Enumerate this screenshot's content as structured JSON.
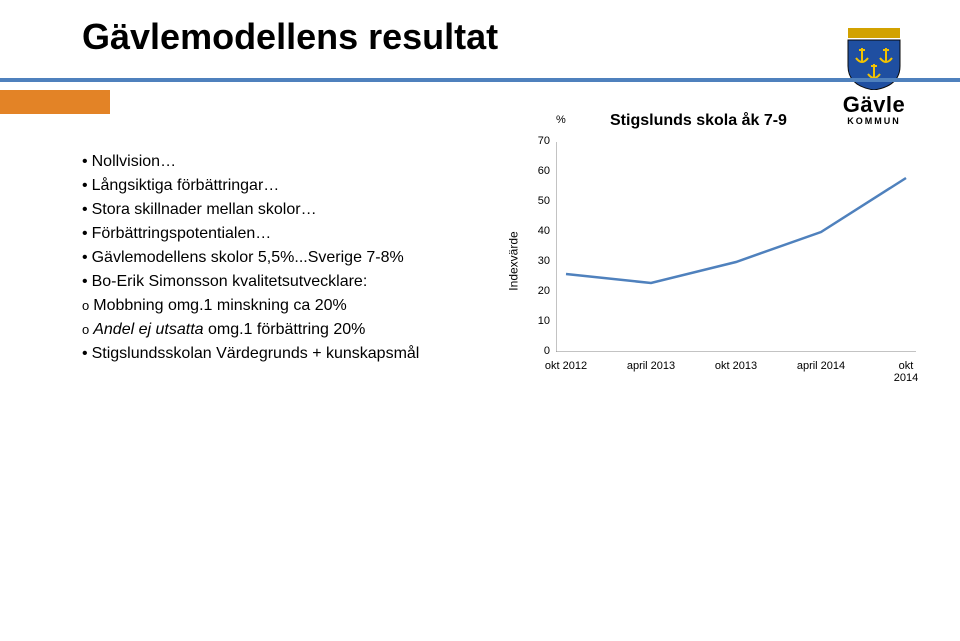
{
  "title": "Gävlemodellens resultat",
  "logo": {
    "text": "Gävle",
    "sub": "KOMMUN",
    "shield_blue": "#1f4fa1",
    "shield_yellow": "#f2c200",
    "wall_gold": "#d2a200",
    "outline": "#0a0a0a"
  },
  "bullets": [
    {
      "t": "Nollvision…"
    },
    {
      "t": "Långsiktiga förbättringar…"
    },
    {
      "t": "Stora skillnader mellan skolor…"
    },
    {
      "t": "Förbättringspotentialen…"
    },
    {
      "t": "Gävlemodellens skolor 5,5%...Sverige 7-8%"
    },
    {
      "t": "Bo-Erik Simonsson kvalitetsutvecklare:",
      "sub": [
        {
          "t": "Mobbning omg.1 minskning ca 20%"
        },
        {
          "t": "Andel ej utsatta omg.1 förbättring  20%",
          "em": "Andel ej utsatta"
        }
      ]
    },
    {
      "t": "Stigslundsskolan Värdegrunds + kunskapsmål"
    }
  ],
  "chart": {
    "type": "line",
    "title": "Stigslunds skola åk 7-9",
    "title_fontsize": 16,
    "ylabel": "Indexvärde",
    "yunit": "%",
    "ylim": [
      0,
      70
    ],
    "ytick_step": 10,
    "x_categories": [
      "okt 2012",
      "april 2013",
      "okt 2013",
      "april 2014",
      "okt 2014"
    ],
    "values": [
      26,
      23,
      30,
      40,
      58
    ],
    "line_color": "#4f81bd",
    "line_width": 2.5,
    "marker_color": "#4f81bd",
    "marker_size": 0,
    "tick_font": 11,
    "label_font": 12,
    "background": "#ffffff",
    "grid": false,
    "axis_color": "#878787"
  },
  "accent_color": "#e38326",
  "rule_color": "#4f81bd"
}
